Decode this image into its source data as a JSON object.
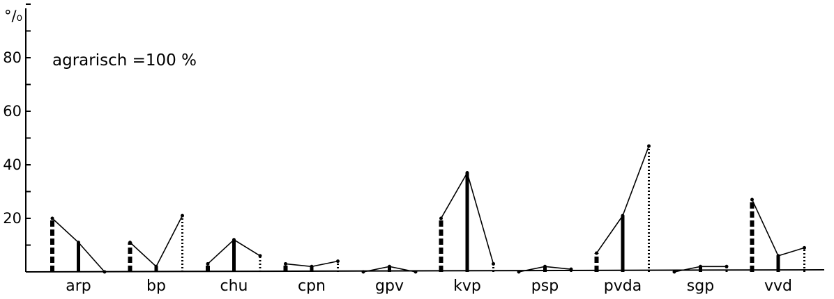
{
  "chart_data": {
    "type": "line",
    "annotation": "agrarisch =100 %",
    "y_unit_label": "°/₀",
    "ylim": [
      0,
      100
    ],
    "y_ticks": [
      20,
      40,
      60,
      80
    ],
    "y_tick_labels": [
      "20",
      "40",
      "60",
      "80"
    ],
    "grid": false,
    "legend": "none",
    "categories": [
      "arp",
      "bp",
      "chu",
      "cpn",
      "gpv",
      "kvp",
      "psp",
      "pvda",
      "sgp",
      "vvd"
    ],
    "series": [
      {
        "style": "dashed-bar",
        "values": [
          20,
          11,
          3,
          3,
          0,
          20,
          0,
          7,
          0,
          27
        ]
      },
      {
        "style": "solid-bar",
        "values": [
          11,
          2,
          12,
          2,
          2,
          37,
          2,
          21,
          2,
          6
        ]
      },
      {
        "style": "dotted-bar",
        "values": [
          0,
          21,
          6,
          4,
          0,
          3,
          1,
          47,
          2,
          9
        ]
      }
    ]
  }
}
